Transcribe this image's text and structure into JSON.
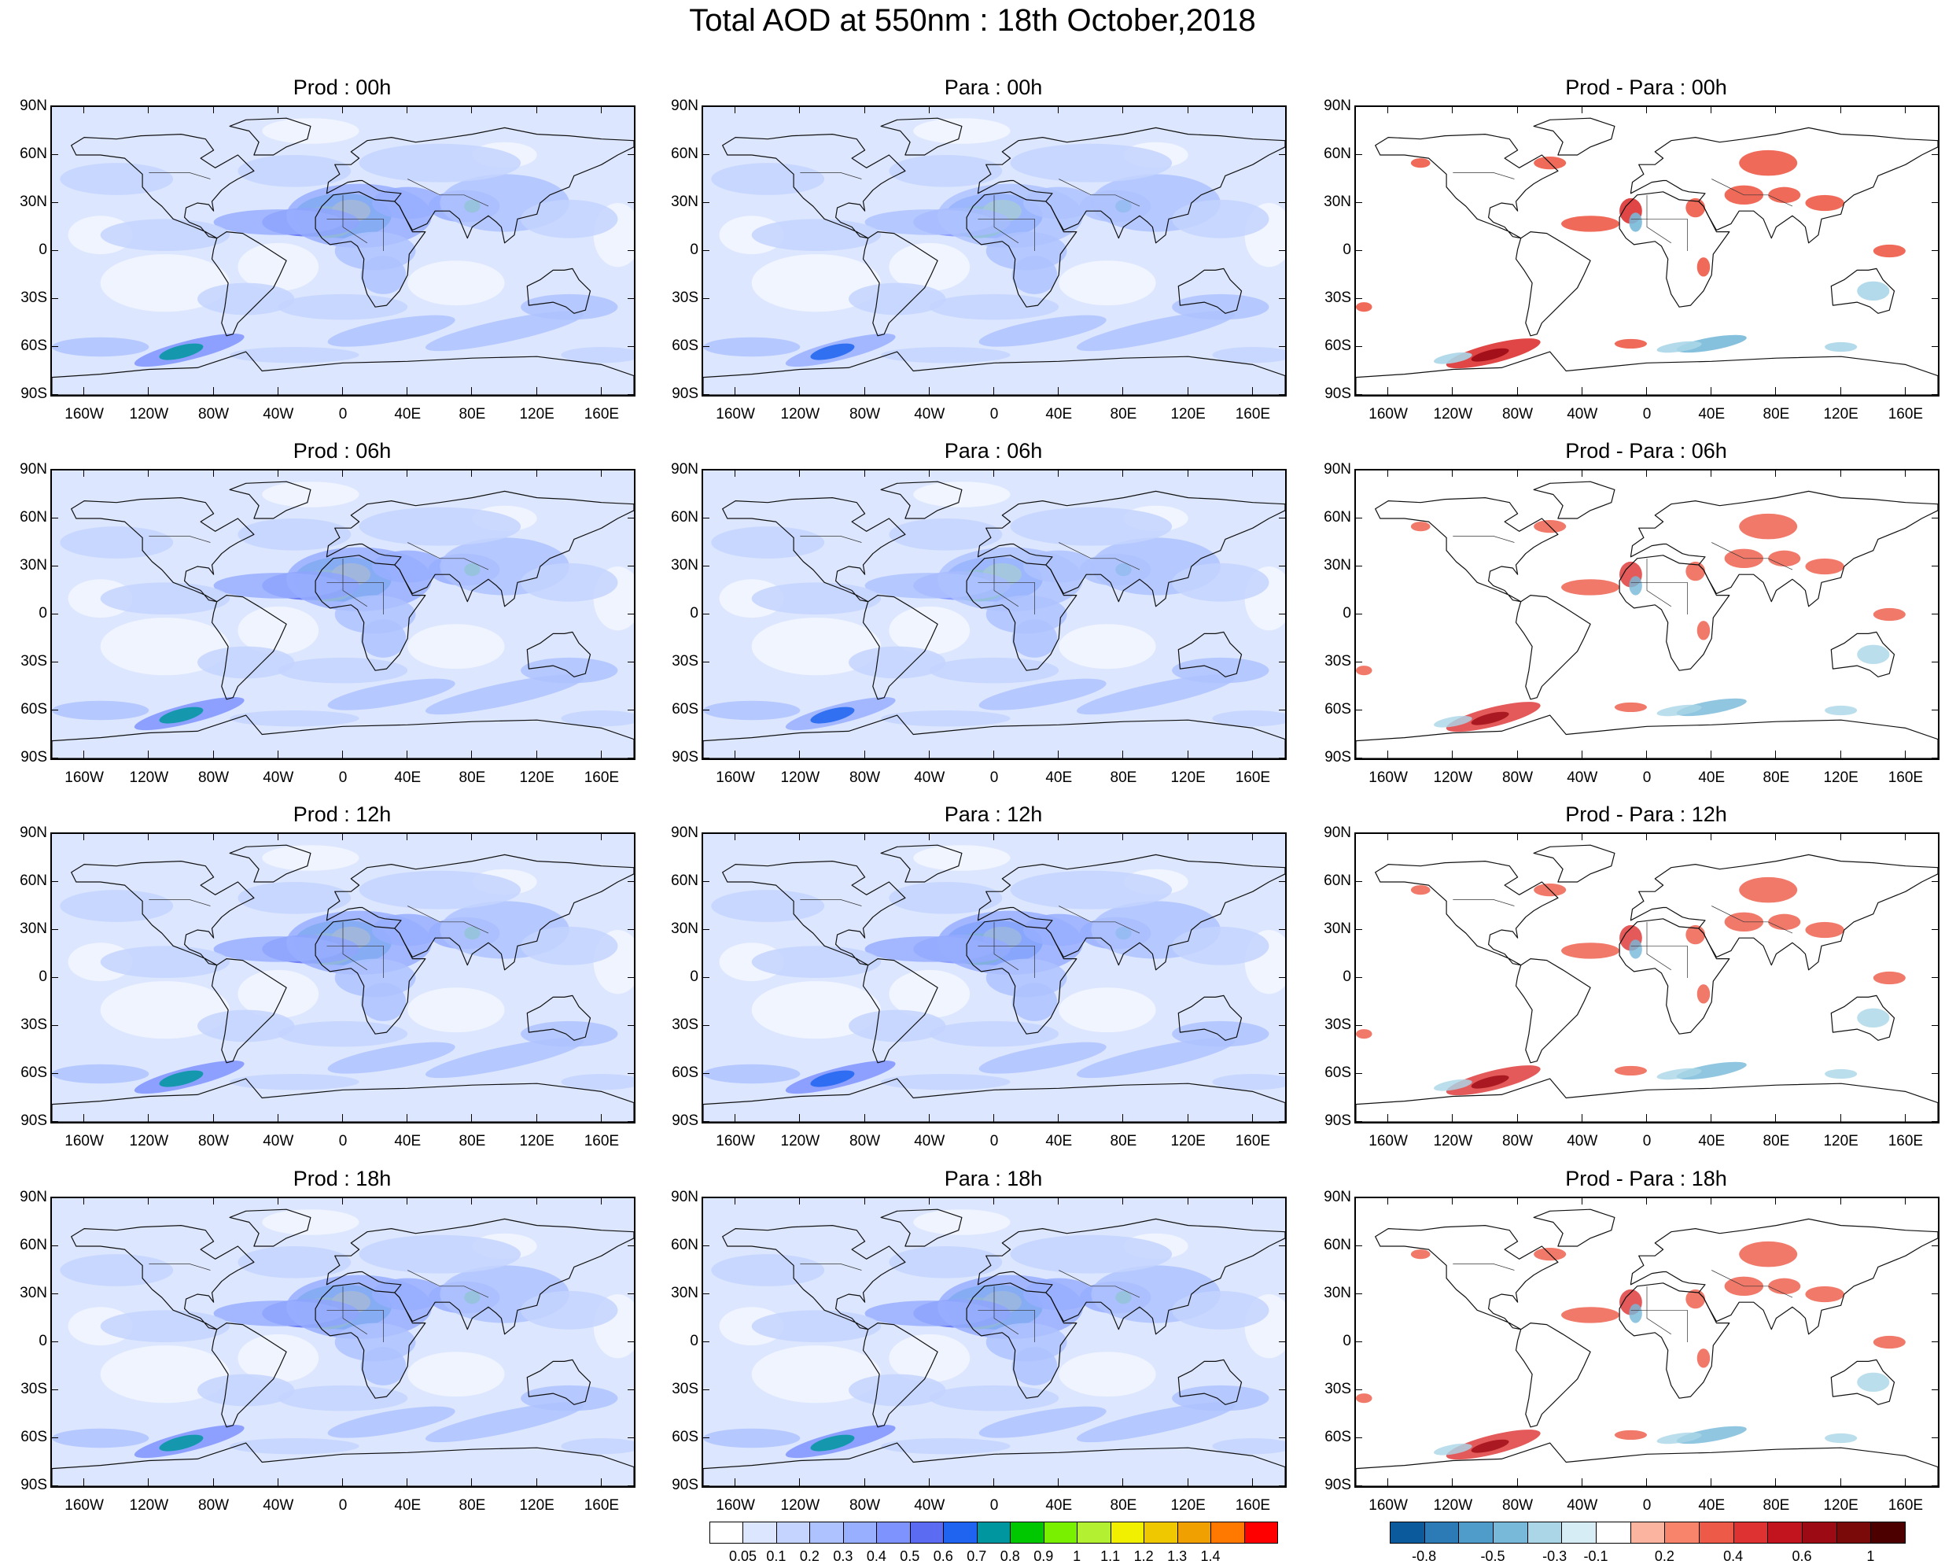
{
  "title": "Total AOD at 550nm : 18th October,2018",
  "panels": [
    {
      "title": "Prod : 00h",
      "kind": "aod",
      "strength": 1.0
    },
    {
      "title": "Para : 00h",
      "kind": "aod",
      "strength": 0.85
    },
    {
      "title": "Prod - Para : 00h",
      "kind": "diff",
      "strength": 1.0
    },
    {
      "title": "Prod : 06h",
      "kind": "aod",
      "strength": 1.0
    },
    {
      "title": "Para : 06h",
      "kind": "aod",
      "strength": 0.85
    },
    {
      "title": "Prod - Para : 06h",
      "kind": "diff",
      "strength": 0.9
    },
    {
      "title": "Prod : 12h",
      "kind": "aod",
      "strength": 1.0
    },
    {
      "title": "Para : 12h",
      "kind": "aod",
      "strength": 0.9
    },
    {
      "title": "Prod - Para : 12h",
      "kind": "diff",
      "strength": 0.9
    },
    {
      "title": "Prod : 18h",
      "kind": "aod",
      "strength": 1.0
    },
    {
      "title": "Para : 18h",
      "kind": "aod",
      "strength": 0.95
    },
    {
      "title": "Prod - Para : 18h",
      "kind": "diff",
      "strength": 0.9
    }
  ],
  "lat_labels": [
    "90N",
    "60N",
    "30N",
    "0",
    "30S",
    "60S",
    "90S"
  ],
  "lon_labels": [
    "160W",
    "120W",
    "80W",
    "40W",
    "0",
    "40E",
    "80E",
    "120E",
    "160E"
  ],
  "aod_colorbar": {
    "labels": [
      "0.05",
      "0.1",
      "0.2",
      "0.3",
      "0.4",
      "0.5",
      "0.6",
      "0.7",
      "0.8",
      "0.9",
      "1",
      "1.1",
      "1.2",
      "1.3",
      "1.4"
    ],
    "colors": [
      "#ffffff",
      "#dce6ff",
      "#c4d4ff",
      "#aec2ff",
      "#98aeff",
      "#7f93ff",
      "#5c6cf2",
      "#1e64f0",
      "#0096a0",
      "#00c800",
      "#78f000",
      "#b4f032",
      "#f0f000",
      "#f0c800",
      "#f0a000",
      "#ff7800",
      "#ff0000"
    ]
  },
  "diff_colorbar": {
    "labels": [
      "-0.8",
      "-0.5",
      "-0.3",
      "-0.1",
      "0.2",
      "0.4",
      "0.6",
      "1"
    ],
    "colors": [
      "#0a5a9c",
      "#2c7bb6",
      "#4f9bc9",
      "#78b9d9",
      "#aad6e8",
      "#d6edf5",
      "#ffffff",
      "#fbb4a0",
      "#f7846b",
      "#ee5a48",
      "#de3232",
      "#c1141e",
      "#9c0a14",
      "#7a0a0a",
      "#4d0000"
    ]
  }
}
